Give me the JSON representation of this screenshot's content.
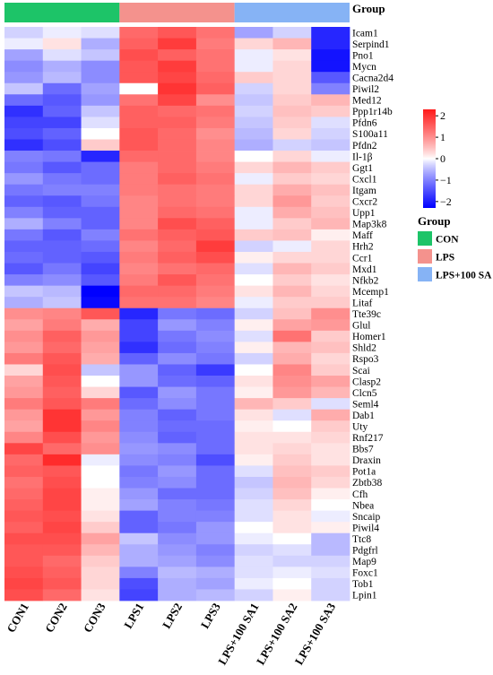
{
  "chart_data": {
    "type": "heatmap",
    "title": "",
    "xlabel": "",
    "ylabel": "",
    "samples": [
      "CON1",
      "CON2",
      "CON3",
      "LPS1",
      "LPS2",
      "LPS3",
      "LPS+100 SA1",
      "LPS+100 SA2",
      "LPS+100 SA3"
    ],
    "sample_groups": [
      "CON",
      "CON",
      "CON",
      "LPS",
      "LPS",
      "LPS",
      "LPS+100 SA",
      "LPS+100 SA",
      "LPS+100 SA"
    ],
    "genes": [
      "Icam1",
      "Serpind1",
      "Pno1",
      "Mycn",
      "Cacna2d4",
      "Piwil2",
      "Med12",
      "Ppp1r14b",
      "Pfdn6",
      "S100a11",
      "Pfdn2",
      "Il-1β",
      "Ggt1",
      "Cxcl1",
      "Itgam",
      "Cxcr2",
      "Upp1",
      "Map3k8",
      "Maff",
      "Hrh2",
      "Ccr1",
      "Mxd1",
      "Nfkb2",
      "Mcemp1",
      "Litaf",
      "Tte39c",
      "Glul",
      "Homer1",
      "Shld2",
      "Rspo3",
      "Scai",
      "Clasp2",
      "Clcn5",
      "Seml4",
      "Dab1",
      "Uty",
      "Rnf217",
      "Bbs7",
      "Draxin",
      "Pot1a",
      "Zbtb38",
      "Cfh",
      "Nbea",
      "Sncaip",
      "Piwil4",
      "Ttc8",
      "Pdgfrl",
      "Map9",
      "Foxc1",
      "Tob1",
      "Lpin1"
    ],
    "values": [
      [
        -0.3,
        -0.1,
        -0.2,
        1.4,
        1.6,
        1.3,
        -0.7,
        -0.3,
        -1.9
      ],
      [
        -0.1,
        0.2,
        -0.6,
        1.5,
        1.9,
        1.2,
        0.3,
        0.6,
        -1.9
      ],
      [
        -0.7,
        -0.2,
        -0.4,
        1.7,
        1.5,
        1.3,
        -0.1,
        0.2,
        -2.1
      ],
      [
        -0.9,
        -0.6,
        -0.9,
        1.6,
        1.9,
        1.3,
        -0.1,
        0.3,
        -2.1
      ],
      [
        -0.8,
        -0.5,
        -0.9,
        1.6,
        1.8,
        1.4,
        0.4,
        0.3,
        -1.4
      ],
      [
        -0.4,
        -1.2,
        -0.7,
        0.0,
        2.0,
        1.5,
        -0.3,
        0.3,
        -1.0
      ],
      [
        -1.2,
        -1.4,
        -0.8,
        1.3,
        1.8,
        1.0,
        -0.4,
        0.4,
        0.6
      ],
      [
        -1.8,
        -1.3,
        -0.4,
        1.5,
        1.4,
        1.3,
        -0.3,
        0.5,
        0.4
      ],
      [
        -1.6,
        -1.6,
        -0.2,
        1.5,
        1.5,
        1.2,
        -0.4,
        0.4,
        -0.2
      ],
      [
        -1.5,
        -1.3,
        0.0,
        1.6,
        1.4,
        1.0,
        -0.5,
        0.3,
        -0.3
      ],
      [
        -1.8,
        -1.5,
        0.4,
        1.6,
        1.4,
        1.1,
        -0.6,
        -0.3,
        -0.4
      ],
      [
        -1.0,
        -1.1,
        -1.9,
        1.4,
        1.4,
        1.1,
        0.0,
        0.3,
        -0.1
      ],
      [
        -1.1,
        -1.4,
        -1.2,
        1.2,
        1.4,
        1.2,
        0.3,
        0.6,
        0.4
      ],
      [
        -0.8,
        -1.1,
        -1.2,
        1.2,
        1.5,
        1.3,
        -0.1,
        0.4,
        0.3
      ],
      [
        -1.1,
        -1.0,
        -1.0,
        1.2,
        1.3,
        1.2,
        0.3,
        0.7,
        0.5
      ],
      [
        -1.3,
        -1.4,
        -1.1,
        1.1,
        1.3,
        1.2,
        0.3,
        0.9,
        0.4
      ],
      [
        -1.0,
        -1.3,
        -1.3,
        1.1,
        1.4,
        1.3,
        -0.1,
        0.7,
        0.5
      ],
      [
        -0.6,
        -1.0,
        -1.3,
        1.1,
        1.7,
        1.5,
        -0.1,
        0.4,
        0.6
      ],
      [
        -1.1,
        -1.4,
        -1.0,
        1.3,
        1.5,
        1.6,
        0.4,
        0.5,
        0.1
      ],
      [
        -1.3,
        -1.3,
        -1.2,
        1.1,
        1.4,
        1.9,
        -0.3,
        -0.1,
        0.3
      ],
      [
        -1.2,
        -1.3,
        -1.4,
        1.2,
        1.5,
        1.7,
        0.1,
        0.3,
        0.3
      ],
      [
        -1.4,
        -1.1,
        -1.6,
        1.1,
        1.3,
        1.4,
        -0.2,
        0.6,
        0.4
      ],
      [
        -1.0,
        -0.9,
        -1.4,
        1.2,
        1.6,
        1.3,
        0.0,
        0.4,
        0.2
      ],
      [
        -0.4,
        -0.5,
        -2.3,
        1.4,
        1.4,
        1.2,
        0.2,
        0.6,
        0.3
      ],
      [
        -0.6,
        -0.4,
        -2.2,
        1.3,
        1.3,
        1.1,
        -0.1,
        0.4,
        0.4
      ],
      [
        1.0,
        1.1,
        1.6,
        -1.9,
        -1.1,
        -1.2,
        -0.3,
        0.5,
        1.0
      ],
      [
        0.8,
        1.2,
        0.7,
        -1.6,
        -0.8,
        -1.0,
        0.1,
        0.8,
        0.9
      ],
      [
        1.0,
        1.5,
        0.9,
        -1.6,
        -1.1,
        -0.9,
        -0.2,
        1.3,
        0.4
      ],
      [
        0.9,
        1.4,
        0.8,
        -1.8,
        -1.2,
        -1.0,
        0.1,
        0.6,
        0.5
      ],
      [
        1.2,
        1.6,
        0.7,
        -1.3,
        -0.9,
        -1.1,
        -0.3,
        0.7,
        0.3
      ],
      [
        0.3,
        1.7,
        -0.4,
        -0.8,
        -1.3,
        -1.7,
        0.0,
        1.1,
        0.4
      ],
      [
        0.8,
        1.6,
        0.0,
        -0.8,
        -1.2,
        -1.3,
        0.2,
        1.0,
        0.8
      ],
      [
        0.9,
        1.5,
        0.3,
        -1.4,
        -0.8,
        -1.1,
        0.1,
        0.9,
        0.6
      ],
      [
        1.2,
        1.6,
        1.2,
        -1.2,
        -0.9,
        -1.1,
        0.6,
        0.4,
        -0.2
      ],
      [
        0.9,
        2.0,
        0.9,
        -1.0,
        -1.3,
        -1.1,
        0.2,
        -0.2,
        0.7
      ],
      [
        0.8,
        2.0,
        1.1,
        -1.0,
        -1.2,
        -1.2,
        0.1,
        0.0,
        0.4
      ],
      [
        1.1,
        1.7,
        0.9,
        -0.9,
        -1.3,
        -1.2,
        0.2,
        0.2,
        0.3
      ],
      [
        1.8,
        1.4,
        1.0,
        -0.8,
        -0.9,
        -1.2,
        0.2,
        0.3,
        0.2
      ],
      [
        1.4,
        2.1,
        -0.1,
        -0.9,
        -1.0,
        -1.5,
        0.1,
        0.4,
        0.2
      ],
      [
        1.5,
        1.6,
        0.0,
        -1.1,
        -0.8,
        -1.2,
        -0.2,
        0.5,
        0.4
      ],
      [
        1.3,
        1.7,
        0.0,
        -1.0,
        -0.9,
        -1.2,
        -0.4,
        0.6,
        0.3
      ],
      [
        1.4,
        1.8,
        0.1,
        -0.8,
        -1.2,
        -1.2,
        -0.3,
        0.5,
        0.1
      ],
      [
        1.5,
        1.8,
        0.1,
        -0.7,
        -1.0,
        -1.1,
        -0.2,
        0.3,
        0.0
      ],
      [
        1.6,
        1.7,
        0.2,
        -1.3,
        -1.0,
        -1.0,
        -0.2,
        0.2,
        -0.1
      ],
      [
        1.5,
        1.8,
        0.4,
        -1.3,
        -1.1,
        -0.8,
        0.0,
        0.2,
        0.1
      ],
      [
        1.7,
        1.7,
        0.8,
        -0.4,
        -0.9,
        -0.8,
        -0.1,
        0.0,
        -0.5
      ],
      [
        1.6,
        1.6,
        0.6,
        -0.6,
        -0.8,
        -1.0,
        -0.3,
        -0.2,
        -0.5
      ],
      [
        1.6,
        1.4,
        0.4,
        -0.6,
        -0.7,
        -0.9,
        -0.2,
        -0.3,
        -0.3
      ],
      [
        1.7,
        1.5,
        0.3,
        -1.0,
        -0.5,
        -0.6,
        -0.2,
        -0.1,
        -0.2
      ],
      [
        1.8,
        1.6,
        0.3,
        -1.5,
        -0.6,
        -0.7,
        -0.1,
        0.0,
        -0.3
      ],
      [
        1.7,
        1.4,
        0.2,
        -1.6,
        -0.6,
        -0.5,
        -0.3,
        0.1,
        -0.3
      ]
    ],
    "color_scale": {
      "min": -2.3,
      "max": 2.3,
      "low_color": "#0000ff",
      "mid_color": "#ffffff",
      "high_color": "#ff1a1a",
      "ticks": [
        2,
        1,
        0,
        -1,
        -2
      ],
      "tick_labels": [
        "2",
        "1",
        "0",
        "−1",
        "−2"
      ]
    },
    "group_bar_label": "Group",
    "legend": {
      "title": "Group",
      "position": "right",
      "items": [
        {
          "label": "CON",
          "color": "#1dc468"
        },
        {
          "label": "LPS",
          "color": "#f4928d"
        },
        {
          "label": "LPS+100 SA",
          "color": "#86b3f5"
        }
      ]
    },
    "grid": false
  }
}
